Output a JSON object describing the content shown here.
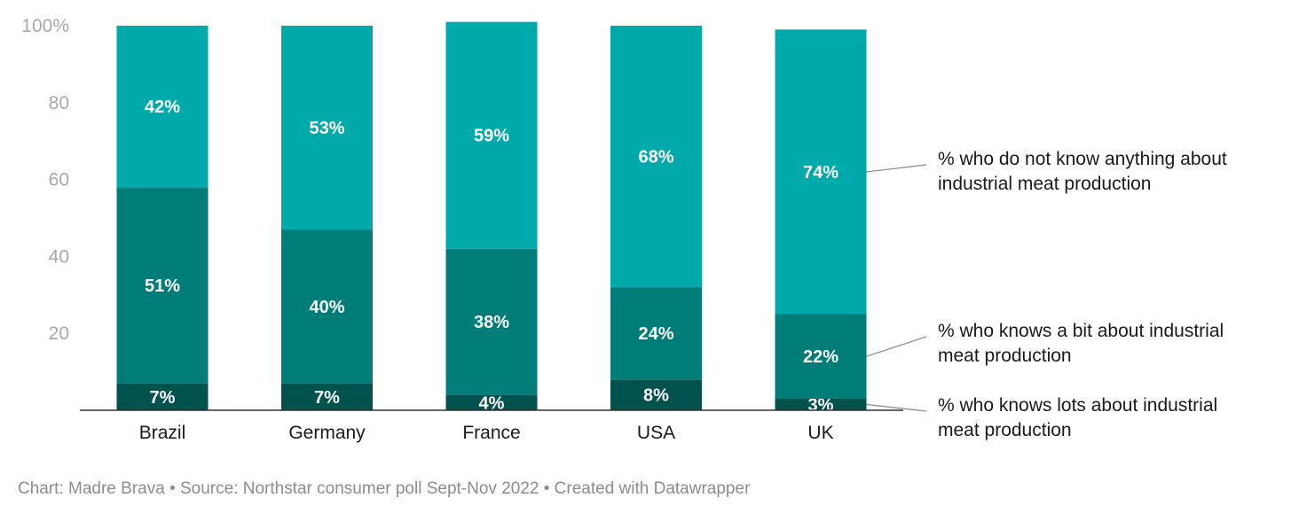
{
  "chart_data": {
    "type": "bar",
    "stacked": true,
    "categories": [
      "Brazil",
      "Germany",
      "France",
      "USA",
      "UK"
    ],
    "series": [
      {
        "name": "% who knows lots about industrial meat production",
        "values": [
          7,
          7,
          4,
          8,
          3
        ],
        "color": "#00524f"
      },
      {
        "name": "% who knows a bit about industrial meat production",
        "values": [
          51,
          40,
          38,
          24,
          22
        ],
        "color": "#007c79"
      },
      {
        "name": "% who do not know anything about industrial meat production",
        "values": [
          42,
          53,
          59,
          68,
          74
        ],
        "color": "#00a9aa"
      }
    ],
    "legend_lines": [
      [
        "% who knows lots about industrial",
        "meat production"
      ],
      [
        "% who knows a bit about industrial",
        "meat production"
      ],
      [
        "% who do not know anything about",
        "industrial meat production"
      ]
    ],
    "value_labels": [
      [
        "7%",
        "7%",
        "4%",
        "8%",
        "3%"
      ],
      [
        "51%",
        "40%",
        "38%",
        "24%",
        "22%"
      ],
      [
        "42%",
        "53%",
        "59%",
        "68%",
        "74%"
      ]
    ],
    "ylim": [
      0,
      100
    ],
    "yticks": [
      20,
      40,
      60,
      80,
      100
    ],
    "ytick_labels": [
      "20",
      "40",
      "60",
      "80",
      "100%"
    ],
    "legend_placement": "right"
  },
  "footer": "Chart: Madre Brava • Source: Northstar consumer poll Sept-Nov 2022 • Created with Datawrapper"
}
